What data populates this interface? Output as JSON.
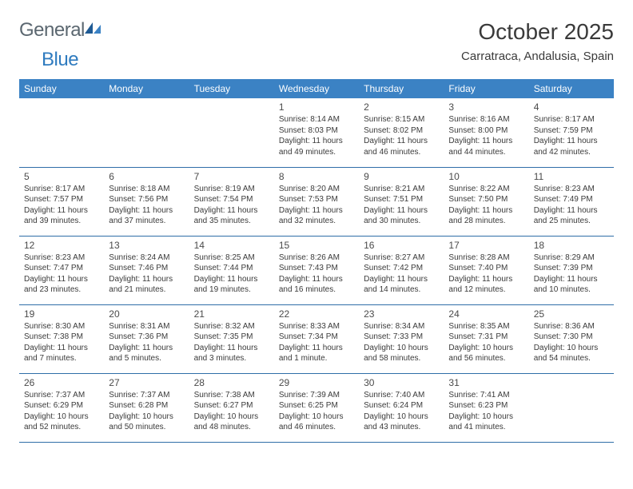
{
  "logo": {
    "part1": "General",
    "part2": "Blue"
  },
  "title": "October 2025",
  "location": "Carratraca, Andalusia, Spain",
  "colors": {
    "header_bg": "#3b82c4",
    "header_text": "#ffffff",
    "row_border": "#2f6ea8",
    "body_text": "#3a3a3a",
    "logo_gray": "#5b6770",
    "logo_blue": "#2f7bbf",
    "background": "#ffffff"
  },
  "fonts": {
    "title_size_pt": 21,
    "location_size_pt": 11,
    "dayheader_size_pt": 9,
    "daynum_size_pt": 9,
    "detail_size_pt": 7.5
  },
  "day_headers": [
    "Sunday",
    "Monday",
    "Tuesday",
    "Wednesday",
    "Thursday",
    "Friday",
    "Saturday"
  ],
  "weeks": [
    [
      null,
      null,
      null,
      {
        "n": "1",
        "sr": "Sunrise: 8:14 AM",
        "ss": "Sunset: 8:03 PM",
        "dl": "Daylight: 11 hours and 49 minutes."
      },
      {
        "n": "2",
        "sr": "Sunrise: 8:15 AM",
        "ss": "Sunset: 8:02 PM",
        "dl": "Daylight: 11 hours and 46 minutes."
      },
      {
        "n": "3",
        "sr": "Sunrise: 8:16 AM",
        "ss": "Sunset: 8:00 PM",
        "dl": "Daylight: 11 hours and 44 minutes."
      },
      {
        "n": "4",
        "sr": "Sunrise: 8:17 AM",
        "ss": "Sunset: 7:59 PM",
        "dl": "Daylight: 11 hours and 42 minutes."
      }
    ],
    [
      {
        "n": "5",
        "sr": "Sunrise: 8:17 AM",
        "ss": "Sunset: 7:57 PM",
        "dl": "Daylight: 11 hours and 39 minutes."
      },
      {
        "n": "6",
        "sr": "Sunrise: 8:18 AM",
        "ss": "Sunset: 7:56 PM",
        "dl": "Daylight: 11 hours and 37 minutes."
      },
      {
        "n": "7",
        "sr": "Sunrise: 8:19 AM",
        "ss": "Sunset: 7:54 PM",
        "dl": "Daylight: 11 hours and 35 minutes."
      },
      {
        "n": "8",
        "sr": "Sunrise: 8:20 AM",
        "ss": "Sunset: 7:53 PM",
        "dl": "Daylight: 11 hours and 32 minutes."
      },
      {
        "n": "9",
        "sr": "Sunrise: 8:21 AM",
        "ss": "Sunset: 7:51 PM",
        "dl": "Daylight: 11 hours and 30 minutes."
      },
      {
        "n": "10",
        "sr": "Sunrise: 8:22 AM",
        "ss": "Sunset: 7:50 PM",
        "dl": "Daylight: 11 hours and 28 minutes."
      },
      {
        "n": "11",
        "sr": "Sunrise: 8:23 AM",
        "ss": "Sunset: 7:49 PM",
        "dl": "Daylight: 11 hours and 25 minutes."
      }
    ],
    [
      {
        "n": "12",
        "sr": "Sunrise: 8:23 AM",
        "ss": "Sunset: 7:47 PM",
        "dl": "Daylight: 11 hours and 23 minutes."
      },
      {
        "n": "13",
        "sr": "Sunrise: 8:24 AM",
        "ss": "Sunset: 7:46 PM",
        "dl": "Daylight: 11 hours and 21 minutes."
      },
      {
        "n": "14",
        "sr": "Sunrise: 8:25 AM",
        "ss": "Sunset: 7:44 PM",
        "dl": "Daylight: 11 hours and 19 minutes."
      },
      {
        "n": "15",
        "sr": "Sunrise: 8:26 AM",
        "ss": "Sunset: 7:43 PM",
        "dl": "Daylight: 11 hours and 16 minutes."
      },
      {
        "n": "16",
        "sr": "Sunrise: 8:27 AM",
        "ss": "Sunset: 7:42 PM",
        "dl": "Daylight: 11 hours and 14 minutes."
      },
      {
        "n": "17",
        "sr": "Sunrise: 8:28 AM",
        "ss": "Sunset: 7:40 PM",
        "dl": "Daylight: 11 hours and 12 minutes."
      },
      {
        "n": "18",
        "sr": "Sunrise: 8:29 AM",
        "ss": "Sunset: 7:39 PM",
        "dl": "Daylight: 11 hours and 10 minutes."
      }
    ],
    [
      {
        "n": "19",
        "sr": "Sunrise: 8:30 AM",
        "ss": "Sunset: 7:38 PM",
        "dl": "Daylight: 11 hours and 7 minutes."
      },
      {
        "n": "20",
        "sr": "Sunrise: 8:31 AM",
        "ss": "Sunset: 7:36 PM",
        "dl": "Daylight: 11 hours and 5 minutes."
      },
      {
        "n": "21",
        "sr": "Sunrise: 8:32 AM",
        "ss": "Sunset: 7:35 PM",
        "dl": "Daylight: 11 hours and 3 minutes."
      },
      {
        "n": "22",
        "sr": "Sunrise: 8:33 AM",
        "ss": "Sunset: 7:34 PM",
        "dl": "Daylight: 11 hours and 1 minute."
      },
      {
        "n": "23",
        "sr": "Sunrise: 8:34 AM",
        "ss": "Sunset: 7:33 PM",
        "dl": "Daylight: 10 hours and 58 minutes."
      },
      {
        "n": "24",
        "sr": "Sunrise: 8:35 AM",
        "ss": "Sunset: 7:31 PM",
        "dl": "Daylight: 10 hours and 56 minutes."
      },
      {
        "n": "25",
        "sr": "Sunrise: 8:36 AM",
        "ss": "Sunset: 7:30 PM",
        "dl": "Daylight: 10 hours and 54 minutes."
      }
    ],
    [
      {
        "n": "26",
        "sr": "Sunrise: 7:37 AM",
        "ss": "Sunset: 6:29 PM",
        "dl": "Daylight: 10 hours and 52 minutes."
      },
      {
        "n": "27",
        "sr": "Sunrise: 7:37 AM",
        "ss": "Sunset: 6:28 PM",
        "dl": "Daylight: 10 hours and 50 minutes."
      },
      {
        "n": "28",
        "sr": "Sunrise: 7:38 AM",
        "ss": "Sunset: 6:27 PM",
        "dl": "Daylight: 10 hours and 48 minutes."
      },
      {
        "n": "29",
        "sr": "Sunrise: 7:39 AM",
        "ss": "Sunset: 6:25 PM",
        "dl": "Daylight: 10 hours and 46 minutes."
      },
      {
        "n": "30",
        "sr": "Sunrise: 7:40 AM",
        "ss": "Sunset: 6:24 PM",
        "dl": "Daylight: 10 hours and 43 minutes."
      },
      {
        "n": "31",
        "sr": "Sunrise: 7:41 AM",
        "ss": "Sunset: 6:23 PM",
        "dl": "Daylight: 10 hours and 41 minutes."
      },
      null
    ]
  ]
}
